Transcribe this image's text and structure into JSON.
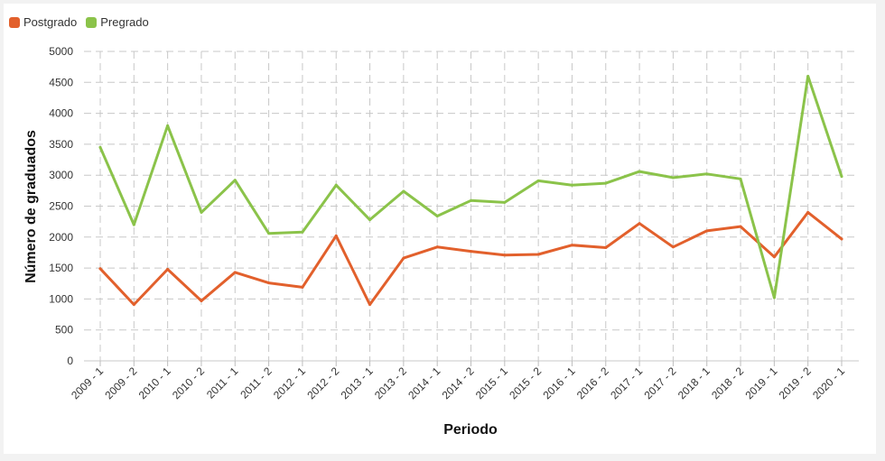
{
  "chart_data": {
    "type": "line",
    "title": "",
    "xlabel": "Periodo",
    "ylabel": "Número de graduados",
    "ylim": [
      0,
      5000
    ],
    "yticks": [
      0,
      500,
      1000,
      1500,
      2000,
      2500,
      3000,
      3500,
      4000,
      4500,
      5000
    ],
    "grid": true,
    "legend_position": "top-left",
    "categories": [
      "2009 - 1",
      "2009 - 2",
      "2010 - 1",
      "2010 - 2",
      "2011 - 1",
      "2011 - 2",
      "2012 - 1",
      "2012 - 2",
      "2013 - 1",
      "2013 - 2",
      "2014 - 1",
      "2014 - 2",
      "2015 - 1",
      "2015 - 2",
      "2016 - 1",
      "2016 - 2",
      "2017 - 1",
      "2017 - 2",
      "2018 - 1",
      "2018 - 2",
      "2019 - 1",
      "2019 - 2",
      "2020 - 1"
    ],
    "series": [
      {
        "name": "Postgrado",
        "color": "#e2602c",
        "values": [
          1490,
          910,
          1480,
          970,
          1430,
          1260,
          1190,
          2020,
          910,
          1660,
          1840,
          1770,
          1710,
          1720,
          1870,
          1830,
          2220,
          1840,
          2100,
          2170,
          1680,
          2400,
          1970
        ]
      },
      {
        "name": "Pregrado",
        "color": "#8bc34a",
        "values": [
          3450,
          2200,
          3800,
          2400,
          2920,
          2060,
          2080,
          2840,
          2280,
          2740,
          2340,
          2590,
          2560,
          2910,
          2840,
          2870,
          3060,
          2960,
          3020,
          2940,
          1020,
          4600,
          2980
        ]
      }
    ]
  }
}
